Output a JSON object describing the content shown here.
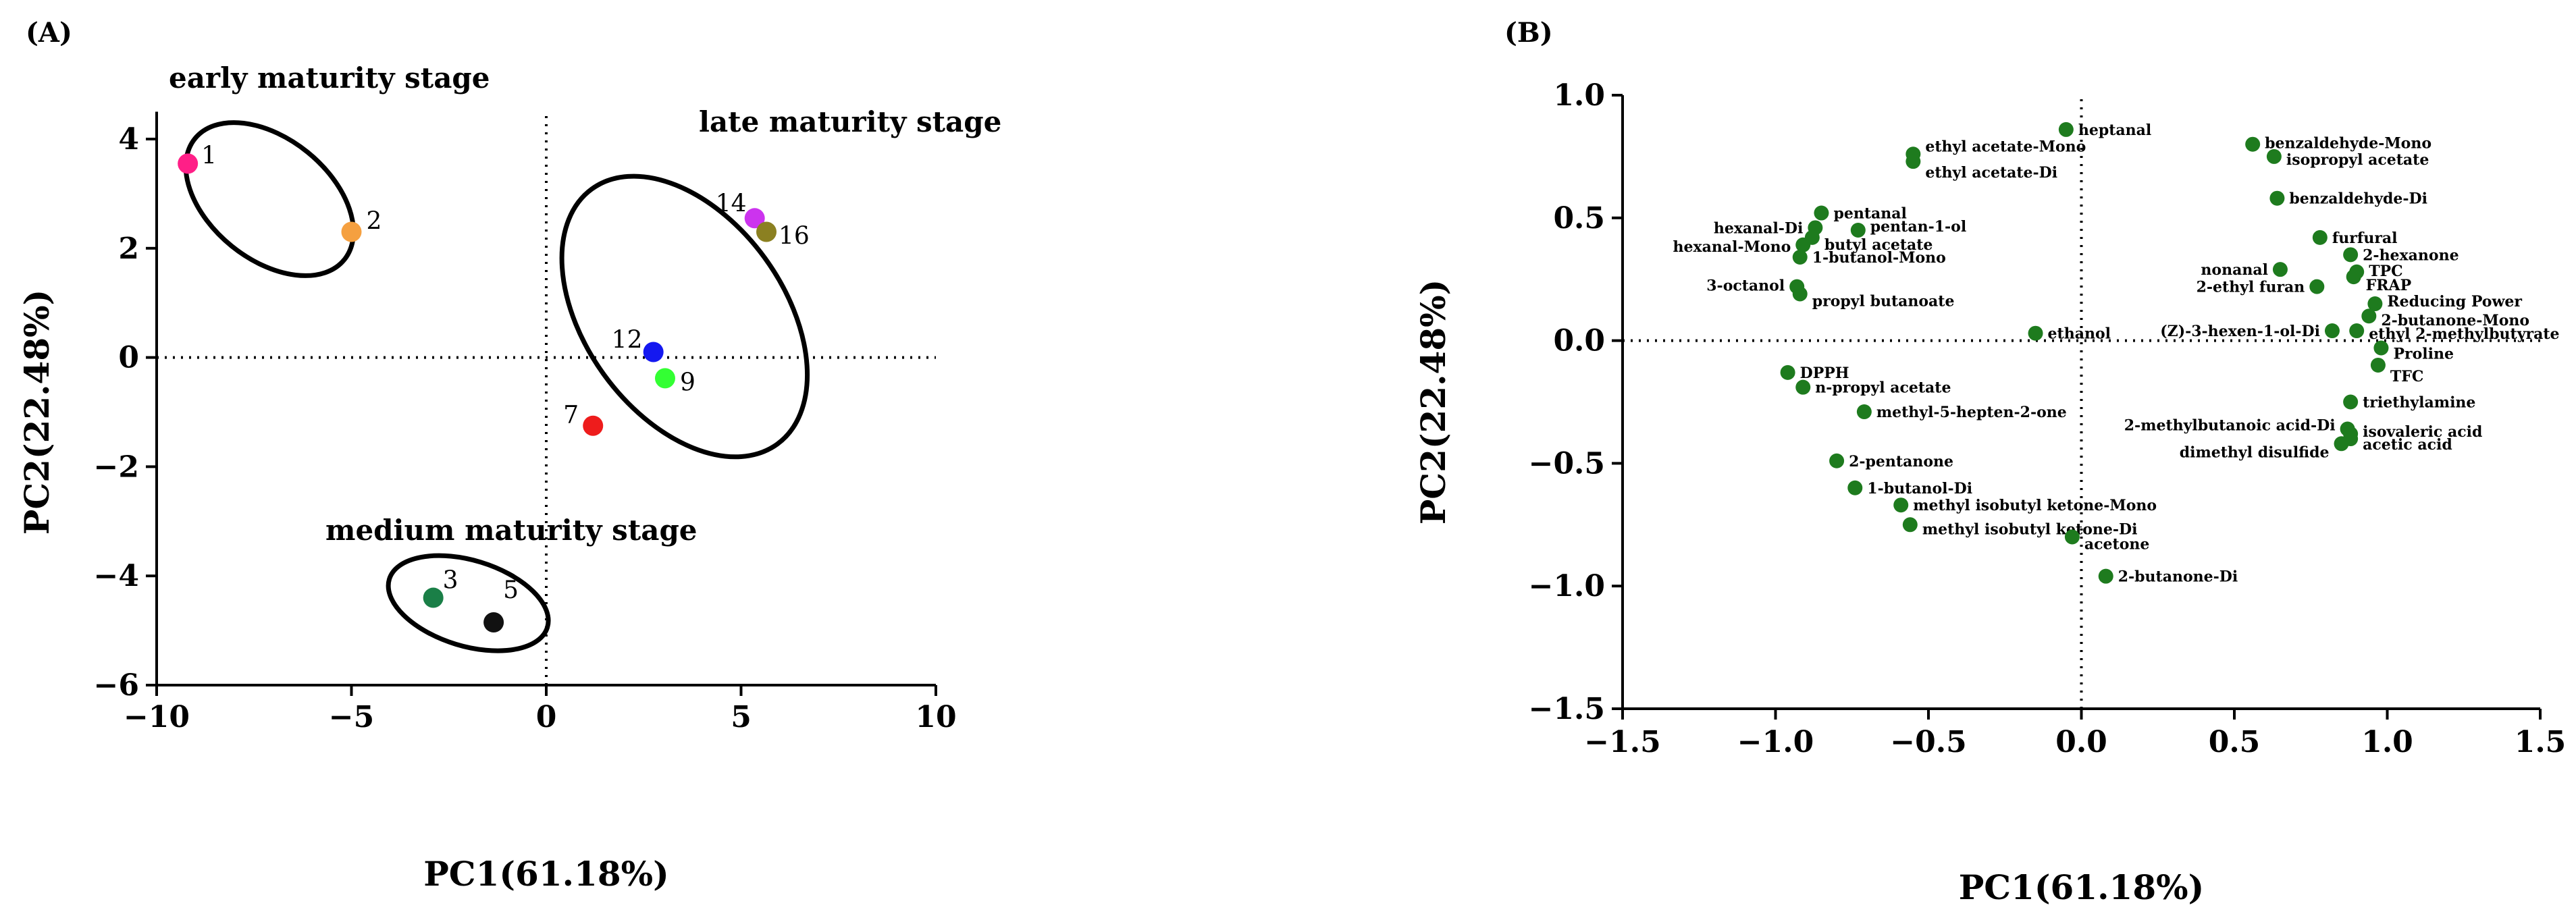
{
  "chart_data": [
    {
      "type": "scatter",
      "panel": "(A)",
      "xlabel": "PC1(61.18%)",
      "ylabel": "PC2(22.48%)",
      "xlim": [
        -10,
        10
      ],
      "ylim": [
        -6,
        4.5
      ],
      "xticks": [
        -10,
        -5,
        0,
        5,
        10
      ],
      "yticks": [
        -6,
        -4,
        -2,
        0,
        2,
        4
      ],
      "xtick_labels": [
        "−10",
        "−5",
        "0",
        "5",
        "10"
      ],
      "ytick_labels": [
        "−6",
        "−4",
        "−2",
        "0",
        "2",
        "4"
      ],
      "reference_lines": "dotted lines at x = 0 and y = 0",
      "grid": false,
      "points": [
        {
          "label": "1",
          "x": -9.2,
          "y": 3.55,
          "color": "#ff1f87"
        },
        {
          "label": "2",
          "x": -5.0,
          "y": 2.3,
          "color": "#f5a040"
        },
        {
          "label": "3",
          "x": -2.9,
          "y": -4.4,
          "color": "#1a7f47"
        },
        {
          "label": "5",
          "x": -1.35,
          "y": -4.85,
          "color": "#111111"
        },
        {
          "label": "7",
          "x": 1.2,
          "y": -1.25,
          "color": "#ee1c1c"
        },
        {
          "label": "9",
          "x": 3.05,
          "y": -0.38,
          "color": "#33ff33"
        },
        {
          "label": "12",
          "x": 2.75,
          "y": 0.1,
          "color": "#1418f0"
        },
        {
          "label": "14",
          "x": 5.35,
          "y": 2.55,
          "color": "#cc33ee"
        },
        {
          "label": "16",
          "x": 5.65,
          "y": 2.3,
          "color": "#8b8021"
        }
      ],
      "groups": [
        {
          "name": "early maturity stage",
          "cx": -7.1,
          "cy": 2.9,
          "rx": 1.55,
          "ry": 3.2,
          "angle_deg": 51
        },
        {
          "name": "late maturity stage",
          "cx": 3.55,
          "cy": 0.75,
          "rx": 2.55,
          "ry": 5.25,
          "angle_deg": 36
        },
        {
          "name": "medium maturity stage",
          "cx": -2.0,
          "cy": -4.5,
          "rx": 1.1,
          "ry": 2.75,
          "angle_deg": 73
        }
      ]
    },
    {
      "type": "scatter",
      "panel": "(B)",
      "xlabel": "PC1(61.18%)",
      "ylabel": "PC2(22.48%)",
      "xlim": [
        -1.5,
        1.5
      ],
      "ylim": [
        -1.5,
        1.0
      ],
      "xticks": [
        -1.5,
        -1.0,
        -0.5,
        0.0,
        0.5,
        1.0,
        1.5
      ],
      "yticks": [
        -1.5,
        -1.0,
        -0.5,
        0.0,
        0.5,
        1.0
      ],
      "xtick_labels": [
        "−1.5",
        "−1.0",
        "−0.5",
        "0.0",
        "0.5",
        "1.0",
        "1.5"
      ],
      "ytick_labels": [
        "−1.5",
        "−1.0",
        "−0.5",
        "0.0",
        "0.5",
        "1.0"
      ],
      "reference_lines": "dotted lines at x = 0 and y = 0",
      "grid": false,
      "marker_color": "#1e7b1e",
      "points": [
        {
          "label": "heptanal",
          "x": -0.05,
          "y": 0.86
        },
        {
          "label": "ethyl acetate-Mono",
          "x": -0.55,
          "y": 0.76
        },
        {
          "label": "ethyl acetate-Di",
          "x": -0.55,
          "y": 0.73
        },
        {
          "label": "benzaldehyde-Mono",
          "x": 0.56,
          "y": 0.8
        },
        {
          "label": "isopropyl acetate",
          "x": 0.63,
          "y": 0.75
        },
        {
          "label": "benzaldehyde-Di",
          "x": 0.64,
          "y": 0.58
        },
        {
          "label": "pentanal",
          "x": -0.85,
          "y": 0.52
        },
        {
          "label": "hexanal-Di",
          "x": -0.87,
          "y": 0.46
        },
        {
          "label": "pentan-1-ol",
          "x": -0.73,
          "y": 0.45
        },
        {
          "label": "hexanal-Mono",
          "x": -0.91,
          "y": 0.39
        },
        {
          "label": "butyl acetate",
          "x": -0.88,
          "y": 0.42
        },
        {
          "label": "1-butanol-Mono",
          "x": -0.92,
          "y": 0.34
        },
        {
          "label": "3-octanol",
          "x": -0.93,
          "y": 0.22
        },
        {
          "label": "propyl butanoate",
          "x": -0.92,
          "y": 0.19
        },
        {
          "label": "furfural",
          "x": 0.78,
          "y": 0.42
        },
        {
          "label": "2-hexanone",
          "x": 0.88,
          "y": 0.35
        },
        {
          "label": "nonanal",
          "x": 0.65,
          "y": 0.29
        },
        {
          "label": "TPC",
          "x": 0.9,
          "y": 0.28
        },
        {
          "label": "FRAP",
          "x": 0.89,
          "y": 0.26
        },
        {
          "label": "2-ethyl furan",
          "x": 0.77,
          "y": 0.22
        },
        {
          "label": "Reducing Power",
          "x": 0.96,
          "y": 0.15
        },
        {
          "label": "2-butanone-Mono",
          "x": 0.94,
          "y": 0.1
        },
        {
          "label": "ethanol",
          "x": -0.15,
          "y": 0.03
        },
        {
          "label": "(Z)-3-hexen-1-ol-Di",
          "x": 0.82,
          "y": 0.04
        },
        {
          "label": "ethyl 2-methylbutyrate",
          "x": 0.9,
          "y": 0.04
        },
        {
          "label": "Proline",
          "x": 0.98,
          "y": -0.03
        },
        {
          "label": "TFC",
          "x": 0.97,
          "y": -0.1
        },
        {
          "label": "DPPH",
          "x": -0.96,
          "y": -0.13
        },
        {
          "label": "n-propyl acetate",
          "x": -0.91,
          "y": -0.19
        },
        {
          "label": "methyl-5-hepten-2-one",
          "x": -0.71,
          "y": -0.29
        },
        {
          "label": "triethylamine",
          "x": 0.88,
          "y": -0.25
        },
        {
          "label": "2-methylbutanoic acid-Di",
          "x": 0.87,
          "y": -0.36
        },
        {
          "label": "isovaleric acid",
          "x": 0.88,
          "y": -0.38
        },
        {
          "label": "acetic acid",
          "x": 0.88,
          "y": -0.4
        },
        {
          "label": "dimethyl disulfide",
          "x": 0.85,
          "y": -0.42
        },
        {
          "label": "2-pentanone",
          "x": -0.8,
          "y": -0.49
        },
        {
          "label": "1-butanol-Di",
          "x": -0.74,
          "y": -0.6
        },
        {
          "label": "methyl isobutyl ketone-Mono",
          "x": -0.59,
          "y": -0.67
        },
        {
          "label": "methyl isobutyl ketone-Di",
          "x": -0.56,
          "y": -0.75
        },
        {
          "label": "acetone",
          "x": -0.03,
          "y": -0.8
        },
        {
          "label": "2-butanone-Di",
          "x": 0.08,
          "y": -0.96
        }
      ]
    }
  ]
}
